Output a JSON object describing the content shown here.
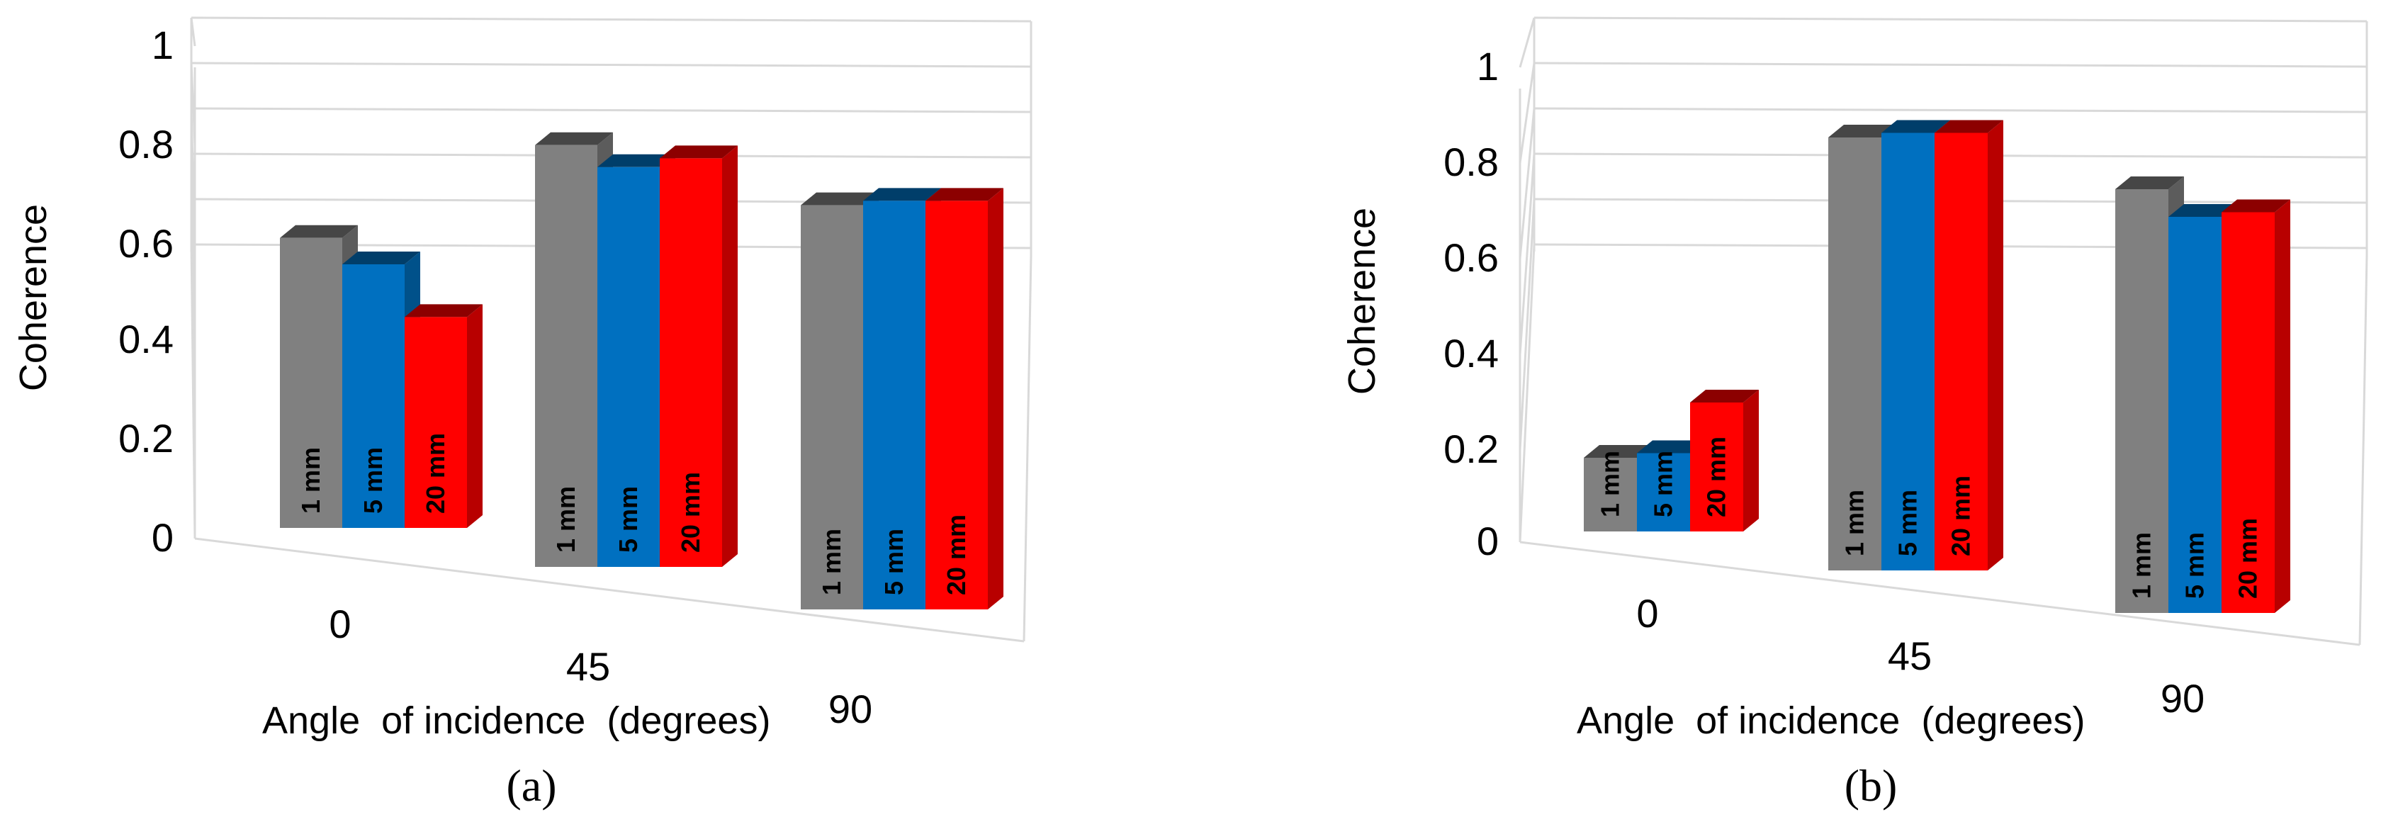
{
  "chart_data": [
    {
      "type": "bar",
      "panel_label": "(a)",
      "categories": [
        "0",
        "45",
        "90"
      ],
      "series": [
        {
          "name": "1 mm",
          "color": "#808080",
          "values": [
            0.66,
            0.96,
            0.92
          ]
        },
        {
          "name": "5 mm",
          "color": "#0070c0",
          "values": [
            0.6,
            0.91,
            0.93
          ]
        },
        {
          "name": "20 mm",
          "color": "#ff0000",
          "values": [
            0.48,
            0.93,
            0.93
          ]
        }
      ],
      "xlabel": "Angle  of incidence  (degrees)",
      "ylabel": "Coherence",
      "ylim": [
        0,
        1
      ],
      "yticks": [
        "0",
        "0.2",
        "0.4",
        "0.6",
        "0.8",
        "1"
      ],
      "style": "3d-clustered-column",
      "grid": true
    },
    {
      "type": "bar",
      "panel_label": "(b)",
      "categories": [
        "0",
        "45",
        "90"
      ],
      "series": [
        {
          "name": "1 mm",
          "color": "#808080",
          "values": [
            0.16,
            0.94,
            0.92
          ]
        },
        {
          "name": "5 mm",
          "color": "#0070c0",
          "values": [
            0.17,
            0.95,
            0.86
          ]
        },
        {
          "name": "20 mm",
          "color": "#ff0000",
          "values": [
            0.28,
            0.95,
            0.87
          ]
        }
      ],
      "xlabel": "Angle  of incidence  (degrees)",
      "ylabel": "Coherence",
      "ylim": [
        0,
        1
      ],
      "yticks": [
        "0",
        "0.2",
        "0.4",
        "0.6",
        "0.8",
        "1"
      ],
      "style": "3d-clustered-column",
      "grid": true
    }
  ]
}
